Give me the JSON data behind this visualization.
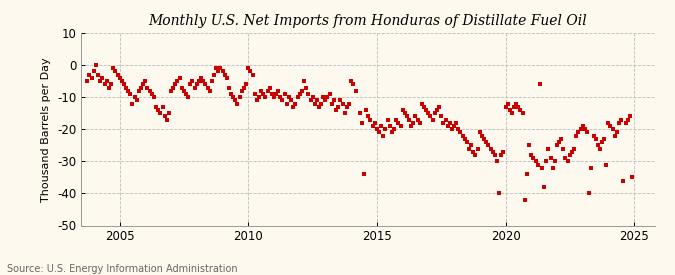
{
  "title": "Monthly U.S. Net Imports from Honduras of Distillate Fuel Oil",
  "ylabel": "Thousand Barrels per Day",
  "source": "Source: U.S. Energy Information Administration",
  "background_color": "#fef9ee",
  "marker_color": "#cc0000",
  "xlim": [
    2003.5,
    2025.8
  ],
  "ylim": [
    -50,
    10
  ],
  "yticks": [
    -50,
    -40,
    -30,
    -20,
    -10,
    0,
    10
  ],
  "xticks": [
    2005,
    2010,
    2015,
    2020,
    2025
  ],
  "data": [
    [
      2003.75,
      -5
    ],
    [
      2003.83,
      -3
    ],
    [
      2003.92,
      -4
    ],
    [
      2004.0,
      -2
    ],
    [
      2004.08,
      0
    ],
    [
      2004.17,
      -3
    ],
    [
      2004.25,
      -5
    ],
    [
      2004.33,
      -4
    ],
    [
      2004.42,
      -6
    ],
    [
      2004.5,
      -5
    ],
    [
      2004.58,
      -7
    ],
    [
      2004.67,
      -6
    ],
    [
      2004.75,
      -1
    ],
    [
      2004.83,
      -2
    ],
    [
      2004.92,
      -3
    ],
    [
      2005.0,
      -4
    ],
    [
      2005.08,
      -5
    ],
    [
      2005.17,
      -6
    ],
    [
      2005.25,
      -7
    ],
    [
      2005.33,
      -8
    ],
    [
      2005.42,
      -9
    ],
    [
      2005.5,
      -12
    ],
    [
      2005.58,
      -10
    ],
    [
      2005.67,
      -11
    ],
    [
      2005.75,
      -8
    ],
    [
      2005.83,
      -7
    ],
    [
      2005.92,
      -6
    ],
    [
      2006.0,
      -5
    ],
    [
      2006.08,
      -7
    ],
    [
      2006.17,
      -8
    ],
    [
      2006.25,
      -9
    ],
    [
      2006.33,
      -10
    ],
    [
      2006.42,
      -13
    ],
    [
      2006.5,
      -14
    ],
    [
      2006.58,
      -15
    ],
    [
      2006.67,
      -13
    ],
    [
      2006.75,
      -16
    ],
    [
      2006.83,
      -17
    ],
    [
      2006.92,
      -15
    ],
    [
      2007.0,
      -8
    ],
    [
      2007.08,
      -7
    ],
    [
      2007.17,
      -6
    ],
    [
      2007.25,
      -5
    ],
    [
      2007.33,
      -4
    ],
    [
      2007.42,
      -7
    ],
    [
      2007.5,
      -8
    ],
    [
      2007.58,
      -9
    ],
    [
      2007.67,
      -10
    ],
    [
      2007.75,
      -6
    ],
    [
      2007.83,
      -5
    ],
    [
      2007.92,
      -7
    ],
    [
      2008.0,
      -6
    ],
    [
      2008.08,
      -5
    ],
    [
      2008.17,
      -4
    ],
    [
      2008.25,
      -5
    ],
    [
      2008.33,
      -6
    ],
    [
      2008.42,
      -7
    ],
    [
      2008.5,
      -8
    ],
    [
      2008.58,
      -5
    ],
    [
      2008.67,
      -3
    ],
    [
      2008.75,
      -1
    ],
    [
      2008.83,
      -2
    ],
    [
      2008.92,
      -1
    ],
    [
      2009.0,
      -2
    ],
    [
      2009.08,
      -3
    ],
    [
      2009.17,
      -4
    ],
    [
      2009.25,
      -7
    ],
    [
      2009.33,
      -9
    ],
    [
      2009.42,
      -10
    ],
    [
      2009.5,
      -11
    ],
    [
      2009.58,
      -12
    ],
    [
      2009.67,
      -10
    ],
    [
      2009.75,
      -8
    ],
    [
      2009.83,
      -7
    ],
    [
      2009.92,
      -6
    ],
    [
      2010.0,
      -1
    ],
    [
      2010.08,
      -2
    ],
    [
      2010.17,
      -3
    ],
    [
      2010.25,
      -9
    ],
    [
      2010.33,
      -11
    ],
    [
      2010.42,
      -10
    ],
    [
      2010.5,
      -8
    ],
    [
      2010.58,
      -9
    ],
    [
      2010.67,
      -10
    ],
    [
      2010.75,
      -8
    ],
    [
      2010.83,
      -7
    ],
    [
      2010.92,
      -9
    ],
    [
      2011.0,
      -10
    ],
    [
      2011.08,
      -9
    ],
    [
      2011.17,
      -8
    ],
    [
      2011.25,
      -10
    ],
    [
      2011.33,
      -11
    ],
    [
      2011.42,
      -9
    ],
    [
      2011.5,
      -12
    ],
    [
      2011.58,
      -10
    ],
    [
      2011.67,
      -11
    ],
    [
      2011.75,
      -13
    ],
    [
      2011.83,
      -12
    ],
    [
      2011.92,
      -10
    ],
    [
      2012.0,
      -9
    ],
    [
      2012.08,
      -8
    ],
    [
      2012.17,
      -5
    ],
    [
      2012.25,
      -7
    ],
    [
      2012.33,
      -9
    ],
    [
      2012.42,
      -11
    ],
    [
      2012.5,
      -10
    ],
    [
      2012.58,
      -12
    ],
    [
      2012.67,
      -11
    ],
    [
      2012.75,
      -13
    ],
    [
      2012.83,
      -12
    ],
    [
      2012.92,
      -10
    ],
    [
      2013.0,
      -11
    ],
    [
      2013.08,
      -10
    ],
    [
      2013.17,
      -9
    ],
    [
      2013.25,
      -12
    ],
    [
      2013.33,
      -11
    ],
    [
      2013.42,
      -14
    ],
    [
      2013.5,
      -13
    ],
    [
      2013.58,
      -11
    ],
    [
      2013.67,
      -12
    ],
    [
      2013.75,
      -15
    ],
    [
      2013.83,
      -13
    ],
    [
      2013.92,
      -12
    ],
    [
      2014.0,
      -5
    ],
    [
      2014.08,
      -6
    ],
    [
      2014.17,
      -8
    ],
    [
      2014.33,
      -15
    ],
    [
      2014.42,
      -18
    ],
    [
      2014.5,
      -34
    ],
    [
      2014.58,
      -14
    ],
    [
      2014.67,
      -16
    ],
    [
      2014.75,
      -17
    ],
    [
      2014.83,
      -19
    ],
    [
      2014.92,
      -18
    ],
    [
      2015.0,
      -20
    ],
    [
      2015.08,
      -21
    ],
    [
      2015.17,
      -19
    ],
    [
      2015.25,
      -22
    ],
    [
      2015.33,
      -20
    ],
    [
      2015.42,
      -17
    ],
    [
      2015.5,
      -19
    ],
    [
      2015.58,
      -21
    ],
    [
      2015.67,
      -20
    ],
    [
      2015.75,
      -17
    ],
    [
      2015.83,
      -18
    ],
    [
      2015.92,
      -19
    ],
    [
      2016.0,
      -14
    ],
    [
      2016.08,
      -15
    ],
    [
      2016.17,
      -16
    ],
    [
      2016.25,
      -17
    ],
    [
      2016.33,
      -19
    ],
    [
      2016.42,
      -18
    ],
    [
      2016.5,
      -16
    ],
    [
      2016.58,
      -17
    ],
    [
      2016.67,
      -18
    ],
    [
      2016.75,
      -12
    ],
    [
      2016.83,
      -13
    ],
    [
      2016.92,
      -14
    ],
    [
      2017.0,
      -15
    ],
    [
      2017.08,
      -16
    ],
    [
      2017.17,
      -17
    ],
    [
      2017.25,
      -15
    ],
    [
      2017.33,
      -14
    ],
    [
      2017.42,
      -13
    ],
    [
      2017.5,
      -16
    ],
    [
      2017.58,
      -18
    ],
    [
      2017.67,
      -17
    ],
    [
      2017.75,
      -19
    ],
    [
      2017.83,
      -18
    ],
    [
      2017.92,
      -20
    ],
    [
      2018.0,
      -19
    ],
    [
      2018.08,
      -18
    ],
    [
      2018.17,
      -20
    ],
    [
      2018.25,
      -21
    ],
    [
      2018.33,
      -22
    ],
    [
      2018.42,
      -23
    ],
    [
      2018.5,
      -24
    ],
    [
      2018.58,
      -26
    ],
    [
      2018.67,
      -25
    ],
    [
      2018.75,
      -27
    ],
    [
      2018.83,
      -28
    ],
    [
      2018.92,
      -26
    ],
    [
      2019.0,
      -21
    ],
    [
      2019.08,
      -22
    ],
    [
      2019.17,
      -23
    ],
    [
      2019.25,
      -24
    ],
    [
      2019.33,
      -25
    ],
    [
      2019.42,
      -26
    ],
    [
      2019.5,
      -27
    ],
    [
      2019.58,
      -28
    ],
    [
      2019.67,
      -30
    ],
    [
      2019.75,
      -40
    ],
    [
      2019.83,
      -28
    ],
    [
      2019.92,
      -27
    ],
    [
      2020.0,
      -13
    ],
    [
      2020.08,
      -12
    ],
    [
      2020.17,
      -14
    ],
    [
      2020.25,
      -15
    ],
    [
      2020.33,
      -13
    ],
    [
      2020.42,
      -12
    ],
    [
      2020.5,
      -13
    ],
    [
      2020.58,
      -14
    ],
    [
      2020.67,
      -15
    ],
    [
      2020.75,
      -42
    ],
    [
      2020.83,
      -34
    ],
    [
      2020.92,
      -25
    ],
    [
      2021.0,
      -28
    ],
    [
      2021.08,
      -29
    ],
    [
      2021.17,
      -30
    ],
    [
      2021.25,
      -31
    ],
    [
      2021.33,
      -6
    ],
    [
      2021.42,
      -32
    ],
    [
      2021.5,
      -38
    ],
    [
      2021.58,
      -30
    ],
    [
      2021.67,
      -26
    ],
    [
      2021.75,
      -29
    ],
    [
      2021.83,
      -32
    ],
    [
      2021.92,
      -30
    ],
    [
      2022.0,
      -25
    ],
    [
      2022.08,
      -24
    ],
    [
      2022.17,
      -23
    ],
    [
      2022.25,
      -26
    ],
    [
      2022.33,
      -29
    ],
    [
      2022.42,
      -30
    ],
    [
      2022.5,
      -28
    ],
    [
      2022.58,
      -27
    ],
    [
      2022.67,
      -26
    ],
    [
      2022.75,
      -22
    ],
    [
      2022.83,
      -21
    ],
    [
      2022.92,
      -20
    ],
    [
      2023.0,
      -19
    ],
    [
      2023.08,
      -20
    ],
    [
      2023.17,
      -21
    ],
    [
      2023.25,
      -40
    ],
    [
      2023.33,
      -32
    ],
    [
      2023.42,
      -22
    ],
    [
      2023.5,
      -23
    ],
    [
      2023.58,
      -25
    ],
    [
      2023.67,
      -26
    ],
    [
      2023.75,
      -24
    ],
    [
      2023.83,
      -23
    ],
    [
      2023.92,
      -31
    ],
    [
      2024.0,
      -18
    ],
    [
      2024.08,
      -19
    ],
    [
      2024.17,
      -20
    ],
    [
      2024.25,
      -22
    ],
    [
      2024.33,
      -21
    ],
    [
      2024.42,
      -18
    ],
    [
      2024.5,
      -17
    ],
    [
      2024.58,
      -36
    ],
    [
      2024.67,
      -18
    ],
    [
      2024.75,
      -17
    ],
    [
      2024.83,
      -16
    ],
    [
      2024.92,
      -35
    ]
  ]
}
